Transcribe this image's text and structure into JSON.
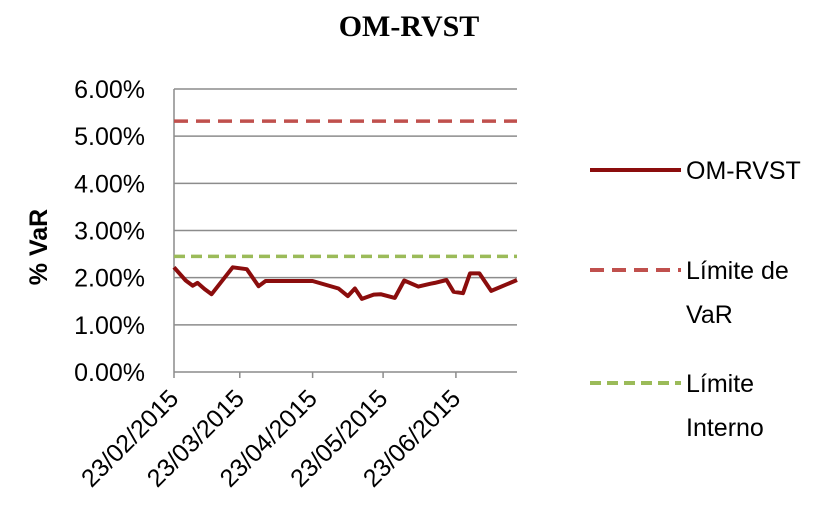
{
  "chart_data": {
    "type": "line",
    "title": "OM-RVST",
    "xlabel": "",
    "ylabel": "% VaR",
    "ylim": [
      0,
      0.06
    ],
    "y_ticks": [
      "0.00%",
      "1.00%",
      "2.00%",
      "3.00%",
      "4.00%",
      "5.00%",
      "6.00%"
    ],
    "x_ticks": [
      "23/02/2015",
      "23/03/2015",
      "23/04/2015",
      "23/05/2015",
      "23/06/2015"
    ],
    "grid": "horizontal",
    "legend": "right",
    "series": [
      {
        "name": "OM-RVST",
        "color": "#8b0d0d",
        "style": "solid",
        "x": [
          "23/02/2015",
          "28/02/2015",
          "03/03/2015",
          "05/03/2015",
          "08/03/2015",
          "11/03/2015",
          "20/03/2015",
          "26/03/2015",
          "31/03/2015",
          "03/04/2015",
          "12/04/2015",
          "23/04/2015",
          "04/05/2015",
          "08/05/2015",
          "11/05/2015",
          "14/05/2015",
          "19/05/2015",
          "22/05/2015",
          "28/05/2015",
          "01/06/2015",
          "07/06/2015",
          "12/06/2015",
          "14/06/2015",
          "19/06/2015",
          "22/06/2015",
          "26/06/2015",
          "29/06/2015",
          "03/07/2015",
          "08/07/2015",
          "19/07/2015"
        ],
        "values": [
          0.0222,
          0.0194,
          0.0183,
          0.0189,
          0.0176,
          0.0165,
          0.0222,
          0.0218,
          0.0182,
          0.0193,
          0.0193,
          0.0193,
          0.0177,
          0.0161,
          0.0177,
          0.0155,
          0.0164,
          0.0165,
          0.0157,
          0.0194,
          0.0181,
          0.0187,
          0.0189,
          0.0195,
          0.017,
          0.0167,
          0.0209,
          0.0209,
          0.0172,
          0.0195
        ]
      },
      {
        "name": "Límite de VaR",
        "color": "#c0504d",
        "style": "dashed",
        "x": [
          "23/02/2015",
          "19/07/2015"
        ],
        "values": [
          0.0532,
          0.0532
        ]
      },
      {
        "name": "Límite Interno",
        "color": "#9bbb59",
        "style": "dashed",
        "x": [
          "23/02/2015",
          "19/07/2015"
        ],
        "values": [
          0.0245,
          0.0245
        ]
      }
    ]
  },
  "legend_lines": {
    "s0": [
      "OM-RVST"
    ],
    "s1": [
      "Límite de",
      "VaR"
    ],
    "s2": [
      "Límite",
      "Interno"
    ]
  }
}
